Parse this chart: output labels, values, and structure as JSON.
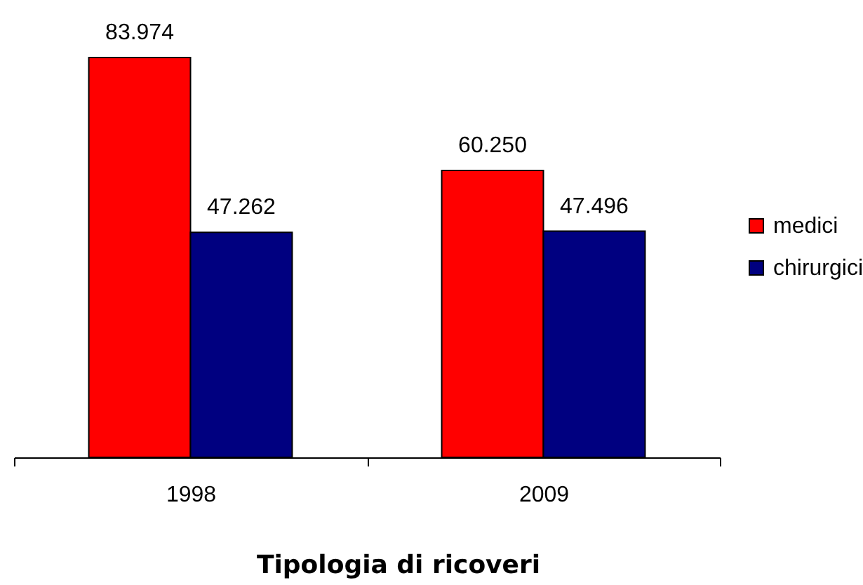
{
  "chart_data": {
    "type": "bar",
    "xlabel": "Tipologia di ricoveri",
    "categories": [
      "1998",
      "2009"
    ],
    "series": [
      {
        "name": "medici",
        "color": "#ff0000",
        "values": [
          83974,
          60250
        ],
        "value_labels": [
          "83.974",
          "60.250"
        ]
      },
      {
        "name": "chirurgici",
        "color": "#000080",
        "values": [
          47262,
          47496
        ],
        "value_labels": [
          "47.262",
          "47.496"
        ]
      }
    ],
    "legend": "right"
  }
}
